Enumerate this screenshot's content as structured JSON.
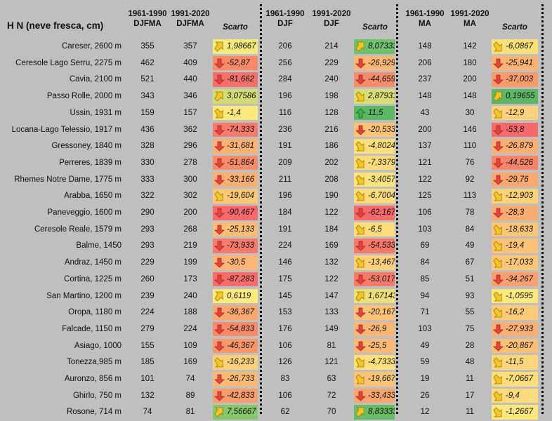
{
  "header": {
    "title": "H N (neve fresca, cm)",
    "g1": {
      "a1": "1961-1990",
      "a2": "DJFMA",
      "b1": "1991-2020",
      "b2": "DJFMA",
      "c": "Scarto"
    },
    "g2": {
      "a1": "1961-1990",
      "a2": "DJF",
      "b1": "1991-2020",
      "b2": "DJF",
      "c": "Scarto"
    },
    "g3": {
      "a1": "1961-1990",
      "a2": "MA",
      "b1": "1991-2020",
      "b2": "MA",
      "c": "Scarto"
    }
  },
  "rows": [
    {
      "station": "Careser, 2600 m",
      "v1": "355",
      "v2": "357",
      "s1": "1,98667",
      "c1": "#f5e97a",
      "a1": "ne",
      "v3": "206",
      "v4": "214",
      "s2": "8,07333",
      "c2": "#71c06c",
      "a2": "ne",
      "v5": "148",
      "v6": "142",
      "s3": "-6,0867",
      "c3": "#fbe07a",
      "a3": "se"
    },
    {
      "station": "Ceresole Lago Serru, 2275 m",
      "v1": "462",
      "v2": "409",
      "s1": "-52,87",
      "c1": "#f98a68",
      "a1": "down",
      "v3": "256",
      "v4": "229",
      "s2": "-26,929",
      "c2": "#fbb674",
      "a2": "down",
      "v5": "206",
      "v6": "180",
      "s3": "-25,941",
      "c3": "#fbb272",
      "a3": "down"
    },
    {
      "station": "Cavia, 2100 m",
      "v1": "521",
      "v2": "440",
      "s1": "-81,662",
      "c1": "#f7716a",
      "a1": "down",
      "v3": "284",
      "v4": "240",
      "s2": "-44,659",
      "c2": "#f98d69",
      "a2": "down",
      "v5": "237",
      "v6": "200",
      "s3": "-37,003",
      "c3": "#fa9b6c",
      "a3": "down"
    },
    {
      "station": "Passo Rolle, 2000 m",
      "v1": "343",
      "v2": "346",
      "s1": "3,07586",
      "c1": "#d3dc73",
      "a1": "ne",
      "v3": "196",
      "v4": "198",
      "s2": "2,87931",
      "c2": "#d8dd74",
      "a2": "se",
      "v5": "148",
      "v6": "148",
      "s3": "0,19655",
      "c3": "#5cb864",
      "a3": "ne"
    },
    {
      "station": "Ussin, 1931 m",
      "v1": "159",
      "v2": "157",
      "s1": "-1,4",
      "c1": "#fce97c",
      "a1": "se",
      "v3": "116",
      "v4": "128",
      "s2": "11,5",
      "c2": "#5cb864",
      "a2": "up",
      "v5": "43",
      "v6": "30",
      "s3": "-12,9",
      "c3": "#fdd27b",
      "a3": "se"
    },
    {
      "station": "Locana-Lago Telessio, 1917 m",
      "v1": "436",
      "v2": "362",
      "s1": "-74,333",
      "c1": "#f77a6a",
      "a1": "down",
      "v3": "236",
      "v4": "216",
      "s2": "-20,533",
      "c2": "#fcc377",
      "a2": "down",
      "v5": "200",
      "v6": "146",
      "s3": "-53,8",
      "c3": "#f8696b",
      "a3": "down"
    },
    {
      "station": "Gressoney, 1840 m",
      "v1": "328",
      "v2": "296",
      "s1": "-31,681",
      "c1": "#fbb272",
      "a1": "down",
      "v3": "191",
      "v4": "186",
      "s2": "-4,8024",
      "c2": "#fde07c",
      "a2": "se",
      "v5": "137",
      "v6": "110",
      "s3": "-26,879",
      "c3": "#fbaf72",
      "a3": "down"
    },
    {
      "station": "Perreres, 1839 m",
      "v1": "330",
      "v2": "278",
      "s1": "-51,864",
      "c1": "#f98c68",
      "a1": "down",
      "v3": "209",
      "v4": "202",
      "s2": "-7,3379",
      "c2": "#fddb7b",
      "a2": "se",
      "v5": "121",
      "v6": "76",
      "s3": "-44,526",
      "c3": "#f9846a",
      "a3": "down"
    },
    {
      "station": "Rhemes Notre Dame, 1775 m",
      "v1": "333",
      "v2": "300",
      "s1": "-33,166",
      "c1": "#fbaf72",
      "a1": "down",
      "v3": "211",
      "v4": "208",
      "s2": "-3,4057",
      "c2": "#fde37c",
      "a2": "se",
      "v5": "122",
      "v6": "92",
      "s3": "-29,76",
      "c3": "#fba970",
      "a3": "down"
    },
    {
      "station": "Arabba, 1650 m",
      "v1": "322",
      "v2": "302",
      "s1": "-19,604",
      "c1": "#fcc878",
      "a1": "se",
      "v3": "196",
      "v4": "190",
      "s2": "-6,7004",
      "c2": "#fddc7b",
      "a2": "se",
      "v5": "125",
      "v6": "113",
      "s3": "-12,903",
      "c3": "#fdd27b",
      "a3": "se"
    },
    {
      "station": "Paneveggio, 1600 m",
      "v1": "290",
      "v2": "200",
      "s1": "-90,467",
      "c1": "#f8696b",
      "a1": "down",
      "v3": "184",
      "v4": "122",
      "s2": "-62,167",
      "c2": "#f8696b",
      "a2": "down",
      "v5": "106",
      "v6": "78",
      "s3": "-28,3",
      "c3": "#fbac71",
      "a3": "down"
    },
    {
      "station": "Ceresole Reale, 1579 m",
      "v1": "293",
      "v2": "268",
      "s1": "-25,133",
      "c1": "#fcbd75",
      "a1": "down",
      "v3": "191",
      "v4": "184",
      "s2": "-6,5",
      "c2": "#fddc7b",
      "a2": "se",
      "v5": "103",
      "v6": "84",
      "s3": "-18,633",
      "c3": "#fcc577",
      "a3": "se"
    },
    {
      "station": "Balme, 1450",
      "v1": "293",
      "v2": "219",
      "s1": "-73,933",
      "c1": "#f77a6a",
      "a1": "down",
      "v3": "224",
      "v4": "169",
      "s2": "-54,533",
      "c2": "#f8786a",
      "a2": "down",
      "v5": "69",
      "v6": "49",
      "s3": "-19,4",
      "c3": "#fcc377",
      "a3": "se"
    },
    {
      "station": "Andraz, 1450 m",
      "v1": "229",
      "v2": "199",
      "s1": "-30,5",
      "c1": "#fbb473",
      "a1": "down",
      "v3": "146",
      "v4": "132",
      "s2": "-13,467",
      "c2": "#fdd07a",
      "a2": "se",
      "v5": "84",
      "v6": "67",
      "s3": "-17,033",
      "c3": "#fcc878",
      "a3": "se"
    },
    {
      "station": "Cortina, 1225 m",
      "v1": "260",
      "v2": "173",
      "s1": "-87,283",
      "c1": "#f86c6b",
      "a1": "down",
      "v3": "175",
      "v4": "122",
      "s2": "-53,017",
      "c2": "#f87b6a",
      "a2": "down",
      "v5": "85",
      "v6": "51",
      "s3": "-34,267",
      "c3": "#faa06e",
      "a3": "down"
    },
    {
      "station": "San Martino, 1200 m",
      "v1": "239",
      "v2": "240",
      "s1": "0,6119",
      "c1": "#fbeb7d",
      "a1": "ne",
      "v3": "145",
      "v4": "147",
      "s2": "1,67143",
      "c2": "#ecdf78",
      "a2": "ne",
      "v5": "94",
      "v6": "93",
      "s3": "-1,0595",
      "c3": "#fee87d",
      "a3": "se"
    },
    {
      "station": "Oropa, 1180 m",
      "v1": "224",
      "v2": "188",
      "s1": "-36,367",
      "c1": "#faa76f",
      "a1": "down",
      "v3": "153",
      "v4": "133",
      "s2": "-20,167",
      "c2": "#fcc377",
      "a2": "down",
      "v5": "71",
      "v6": "55",
      "s3": "-16,2",
      "c3": "#fdca79",
      "a3": "se"
    },
    {
      "station": "Falcade, 1150 m",
      "v1": "279",
      "v2": "224",
      "s1": "-54,833",
      "c1": "#f98a68",
      "a1": "down",
      "v3": "176",
      "v4": "149",
      "s2": "-26,9",
      "c2": "#fbb674",
      "a2": "down",
      "v5": "103",
      "v6": "75",
      "s3": "-27,933",
      "c3": "#fbae71",
      "a3": "down"
    },
    {
      "station": "Asiago, 1000",
      "v1": "155",
      "v2": "109",
      "s1": "-46,367",
      "c1": "#f9976b",
      "a1": "down",
      "v3": "106",
      "v4": "81",
      "s2": "-25,5",
      "c2": "#fbba74",
      "a2": "down",
      "v5": "49",
      "v6": "28",
      "s3": "-20,867",
      "c3": "#fcbf76",
      "a3": "down"
    },
    {
      "station": "Tonezza,985 m",
      "v1": "185",
      "v2": "169",
      "s1": "-16,233",
      "c1": "#fccf79",
      "a1": "se",
      "v3": "126",
      "v4": "121",
      "s2": "-4,7333",
      "c2": "#fde07c",
      "a2": "se",
      "v5": "59",
      "v6": "48",
      "s3": "-11,5",
      "c3": "#fdd67b",
      "a3": "se"
    },
    {
      "station": "Auronzo, 856 m",
      "v1": "101",
      "v2": "74",
      "s1": "-26,733",
      "c1": "#fbba74",
      "a1": "down",
      "v3": "83",
      "v4": "63",
      "s2": "-19,667",
      "c2": "#fcc477",
      "a2": "se",
      "v5": "19",
      "v6": "11",
      "s3": "-7,0667",
      "c3": "#fdde7b",
      "a3": "se"
    },
    {
      "station": "Ghirlo, 750 m",
      "v1": "132",
      "v2": "89",
      "s1": "-42,833",
      "c1": "#fa9d6d",
      "a1": "down",
      "v3": "106",
      "v4": "72",
      "s2": "-33,433",
      "c2": "#faa56f",
      "a2": "down",
      "v5": "26",
      "v6": "17",
      "s3": "-9,4",
      "c3": "#fdda7b",
      "a3": "se"
    },
    {
      "station": "Rosone, 714 m",
      "v1": "74",
      "v2": "81",
      "s1": "7,56667",
      "c1": "#86c76c",
      "a1": "ne",
      "v3": "62",
      "v4": "70",
      "s2": "8,83333",
      "c2": "#68bc68",
      "a2": "ne",
      "v5": "12",
      "v6": "11",
      "s3": "-1,2667",
      "c3": "#fee87d",
      "a3": "se"
    }
  ]
}
